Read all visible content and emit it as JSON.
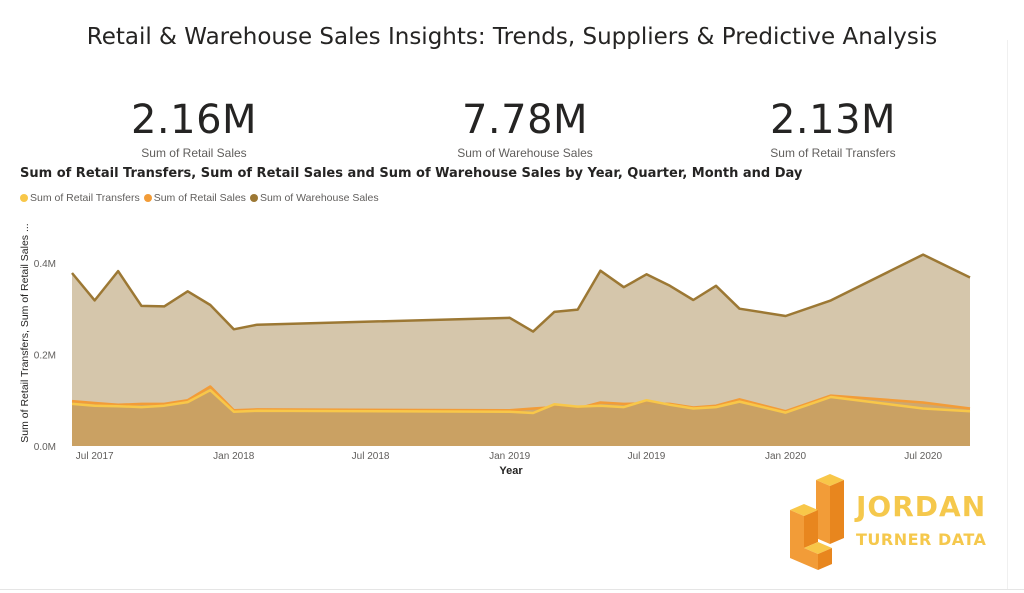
{
  "page": {
    "title": "Retail & Warehouse Sales Insights: Trends, Suppliers & Predictive Analysis"
  },
  "kpis": [
    {
      "value": "2.16M",
      "label": "Sum of Retail Sales"
    },
    {
      "value": "7.78M",
      "label": "Sum of Warehouse Sales"
    },
    {
      "value": "2.13M",
      "label": "Sum of Retail Transfers"
    }
  ],
  "branding": {
    "line1": "JORDAN",
    "line2": "TURNER DATA",
    "color": "#F5C84C"
  },
  "chart_data": {
    "type": "area",
    "title": "Sum of Retail Transfers, Sum of Retail Sales and Sum of Warehouse Sales by Year, Quarter, Month and Day",
    "xlabel": "Year",
    "ylabel": "Sum of Retail Transfers, Sum of Retail Sales ...",
    "legend_position": "top-left",
    "grid": false,
    "ylim": [
      0,
      0.45
    ],
    "y_ticks": [
      "0.0M",
      "0.2M",
      "0.4M"
    ],
    "y_tick_values": [
      0,
      0.2,
      0.4
    ],
    "x_ticks": [
      {
        "label": "Jul 2017",
        "date": "2017-07-01"
      },
      {
        "label": "Jan 2018",
        "date": "2018-01-01"
      },
      {
        "label": "Jul 2018",
        "date": "2018-07-01"
      },
      {
        "label": "Jan 2019",
        "date": "2019-01-01"
      },
      {
        "label": "Jul 2019",
        "date": "2019-07-01"
      },
      {
        "label": "Jan 2020",
        "date": "2020-01-01"
      },
      {
        "label": "Jul 2020",
        "date": "2020-07-01"
      }
    ],
    "x_range": [
      "2017-06-01",
      "2020-09-01"
    ],
    "x": [
      "2017-06-01",
      "2017-07-01",
      "2017-08-01",
      "2017-09-01",
      "2017-10-01",
      "2017-11-01",
      "2017-12-01",
      "2018-01-01",
      "2018-02-01",
      "2019-01-01",
      "2019-02-01",
      "2019-03-01",
      "2019-04-01",
      "2019-05-01",
      "2019-06-01",
      "2019-07-01",
      "2019-08-01",
      "2019-09-01",
      "2019-10-01",
      "2019-11-01",
      "2020-01-01",
      "2020-03-01",
      "2020-07-01",
      "2020-09-01"
    ],
    "series": [
      {
        "name": "Sum of Warehouse Sales",
        "color": "#9C7834",
        "fill": "#D5C6AB",
        "values": [
          0.378,
          0.318,
          0.382,
          0.306,
          0.305,
          0.338,
          0.308,
          0.255,
          0.265,
          0.28,
          0.25,
          0.293,
          0.298,
          0.383,
          0.347,
          0.375,
          0.35,
          0.319,
          0.35,
          0.3,
          0.284,
          0.318,
          0.418,
          0.368
        ]
      },
      {
        "name": "Sum of Retail Sales",
        "color": "#F29C38",
        "fill": "#CCA264",
        "values": [
          0.098,
          0.094,
          0.09,
          0.092,
          0.092,
          0.1,
          0.13,
          0.078,
          0.08,
          0.078,
          0.082,
          0.085,
          0.082,
          0.095,
          0.092,
          0.093,
          0.092,
          0.084,
          0.088,
          0.102,
          0.076,
          0.11,
          0.095,
          0.082
        ]
      },
      {
        "name": "Sum of Retail Transfers",
        "color": "#F8C749",
        "fill": "#C9A061",
        "values": [
          0.092,
          0.088,
          0.087,
          0.085,
          0.088,
          0.096,
          0.122,
          0.075,
          0.077,
          0.075,
          0.072,
          0.091,
          0.086,
          0.088,
          0.085,
          0.1,
          0.09,
          0.082,
          0.085,
          0.097,
          0.073,
          0.107,
          0.082,
          0.076
        ]
      }
    ]
  }
}
